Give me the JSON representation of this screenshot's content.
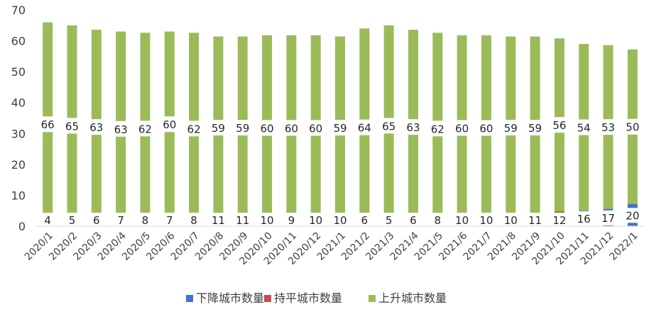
{
  "chart_data": {
    "type": "bar",
    "stacked": true,
    "categories": [
      "2020/1",
      "2020/2",
      "2020/3",
      "2020/4",
      "2020/5",
      "2020/6",
      "2020/7",
      "2020/8",
      "2020/9",
      "2020/10",
      "2020/11",
      "2020/12",
      "2021/1",
      "2021/2",
      "2021/3",
      "2021/4",
      "2021/5",
      "2021/6",
      "2021/7",
      "2021/8",
      "2021/9",
      "2021/10",
      "2021/11",
      "2021/12",
      "2022/1"
    ],
    "series": [
      {
        "name": "下降城市数量",
        "color": "#4472c4",
        "values": [
          4,
          5,
          6,
          7,
          8,
          7,
          8,
          11,
          11,
          10,
          9,
          10,
          10,
          6,
          5,
          6,
          8,
          10,
          10,
          10,
          11,
          12,
          16,
          17,
          20
        ],
        "visible_values": [
          0,
          0,
          0,
          0,
          0.6,
          0,
          0.6,
          2.4,
          2.4,
          1.8,
          1.2,
          1.8,
          1.8,
          0,
          0,
          0,
          0.6,
          1.8,
          1.8,
          1.8,
          2.4,
          3,
          5,
          5.6,
          7.2
        ]
      },
      {
        "name": "持平城市数量",
        "color": "#c0504d",
        "values": [
          0,
          0,
          0.6,
          0,
          0,
          3,
          0,
          0,
          0,
          0,
          0.6,
          0,
          0.6,
          0,
          0,
          0.6,
          0,
          0,
          0,
          0.6,
          0,
          1.8,
          0,
          0,
          0
        ]
      },
      {
        "name": "上升城市数量",
        "color": "#9bbb59",
        "values": [
          66,
          65,
          63,
          63,
          62,
          60,
          62,
          59,
          59,
          60,
          60,
          60,
          59,
          64,
          65,
          63,
          62,
          60,
          60,
          59,
          59,
          56,
          54,
          53,
          50
        ]
      }
    ],
    "ylim": [
      0,
      70
    ],
    "yticks": [
      "0",
      "10",
      "20",
      "30",
      "40",
      "50",
      "60",
      "70"
    ],
    "grid": false,
    "legend": "bottom"
  }
}
